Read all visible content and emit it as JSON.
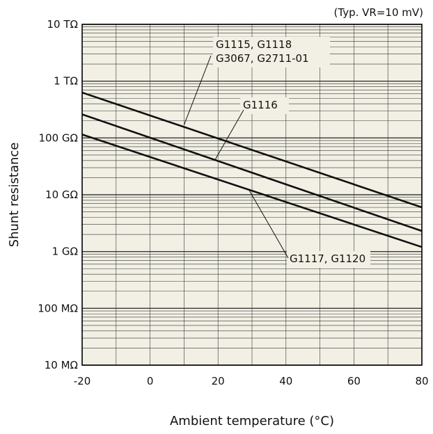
{
  "chart_data": {
    "type": "line",
    "title": "",
    "condition_note": "(Typ. VR=10 mV)",
    "xlabel": "Ambient temperature (°C)",
    "ylabel": "Shunt resistance",
    "xlim": [
      -20,
      80
    ],
    "ylim": [
      10000000,
      10000000000000
    ],
    "y_scale": "log",
    "grid": true,
    "x_ticks": [
      -20,
      0,
      20,
      40,
      60,
      80
    ],
    "y_ticks": [
      {
        "value": 10000000000000,
        "label": "10 TΩ"
      },
      {
        "value": 1000000000000,
        "label": "1 TΩ"
      },
      {
        "value": 100000000000,
        "label": "100 GΩ"
      },
      {
        "value": 10000000000,
        "label": "10 GΩ"
      },
      {
        "value": 1000000000,
        "label": "1 GΩ"
      },
      {
        "value": 100000000,
        "label": "100 MΩ"
      },
      {
        "value": 10000000,
        "label": "10 MΩ"
      }
    ],
    "series": [
      {
        "name": "G1115, G1118 / G3067, G2711-01",
        "x": [
          -20,
          80
        ],
        "y": [
          630000000000,
          6000000000
        ]
      },
      {
        "name": "G1116",
        "x": [
          -20,
          80
        ],
        "y": [
          260000000000,
          2300000000
        ]
      },
      {
        "name": "G1117, G1120",
        "x": [
          -20,
          80
        ],
        "y": [
          115000000000,
          1200000000
        ]
      }
    ],
    "callouts": [
      {
        "lines": [
          "G1115, G1118",
          "G3067, G2711-01"
        ],
        "points_to": {
          "x": 10,
          "y": 170000000000
        }
      },
      {
        "lines": [
          "G1116"
        ],
        "points_to": {
          "x": 19,
          "y": 40000000000
        }
      },
      {
        "lines": [
          "G1117, G1120"
        ],
        "points_to": {
          "x": 29,
          "y": 12500000000
        }
      }
    ]
  }
}
